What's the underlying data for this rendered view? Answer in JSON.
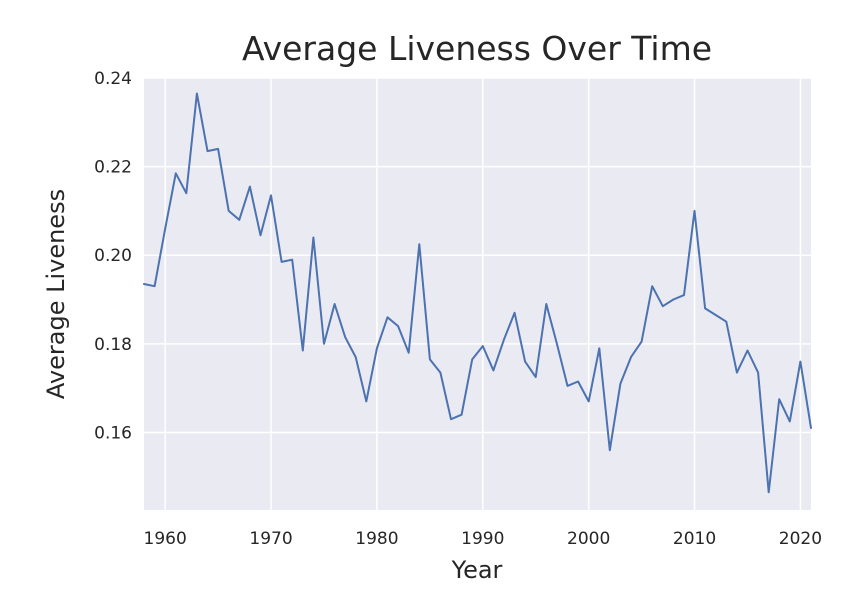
{
  "chart_data": {
    "type": "line",
    "title": "Average Liveness Over Time",
    "xlabel": "Year",
    "ylabel": "Average Liveness",
    "xlim": [
      1958,
      2021
    ],
    "ylim": [
      0.1425,
      0.24
    ],
    "xticks": [
      1960,
      1970,
      1980,
      1990,
      2000,
      2010,
      2020
    ],
    "xtick_labels": [
      "1960",
      "1970",
      "1980",
      "1990",
      "2000",
      "2010",
      "2020"
    ],
    "yticks": [
      0.16,
      0.18,
      0.2,
      0.22,
      0.24
    ],
    "ytick_labels": [
      "0.16",
      "0.18",
      "0.20",
      "0.22",
      "0.24"
    ],
    "grid": true,
    "legend": "none",
    "colors": {
      "background": "#eaeaf2",
      "grid": "#ffffff",
      "line": "#4c72b0"
    },
    "series": [
      {
        "x": [
          1958,
          1959,
          1960,
          1961,
          1962,
          1963,
          1964,
          1965,
          1966,
          1967,
          1968,
          1969,
          1970,
          1971,
          1972,
          1973,
          1974,
          1975,
          1976,
          1977,
          1978,
          1979,
          1980,
          1981,
          1982,
          1983,
          1984,
          1985,
          1986,
          1987,
          1988,
          1989,
          1990,
          1991,
          1992,
          1993,
          1994,
          1995,
          1996,
          1997,
          1998,
          1999,
          2000,
          2001,
          2002,
          2003,
          2004,
          2005,
          2006,
          2007,
          2008,
          2009,
          2010,
          2011,
          2012,
          2013,
          2014,
          2015,
          2016,
          2017,
          2018,
          2019,
          2020,
          2021
        ],
        "values": [
          0.1935,
          0.193,
          0.206,
          0.2185,
          0.214,
          0.2365,
          0.2235,
          0.224,
          0.21,
          0.208,
          0.2155,
          0.2045,
          0.2135,
          0.1985,
          0.199,
          0.1785,
          0.204,
          0.18,
          0.189,
          0.1815,
          0.177,
          0.167,
          0.179,
          0.186,
          0.184,
          0.178,
          0.2025,
          0.1765,
          0.1735,
          0.163,
          0.164,
          0.1765,
          0.1795,
          0.174,
          0.181,
          0.187,
          0.176,
          0.1725,
          0.189,
          0.18,
          0.1705,
          0.1715,
          0.167,
          0.179,
          0.156,
          0.171,
          0.177,
          0.1805,
          0.193,
          0.1885,
          0.19,
          0.191,
          0.21,
          0.188,
          0.1865,
          0.185,
          0.1735,
          0.1785,
          0.1735,
          0.1465,
          0.1675,
          0.1625,
          0.176,
          0.161
        ]
      }
    ]
  }
}
